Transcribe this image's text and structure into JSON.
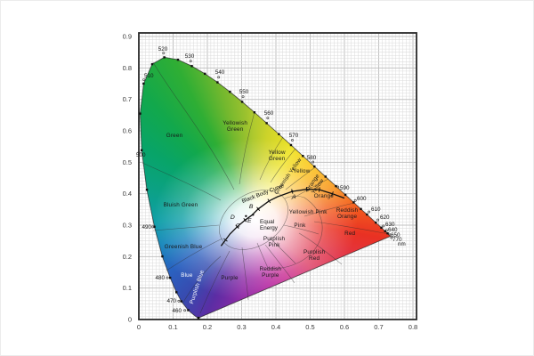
{
  "chart_data": {
    "type": "area",
    "title": "",
    "xlabel": "",
    "ylabel": "",
    "x_axis": {
      "range": [
        0,
        0.8
      ],
      "ticks": [
        "0",
        "0.1",
        "0.2",
        "0.3",
        "0.4",
        "0.5",
        "0.6",
        "0.7",
        "0.8"
      ]
    },
    "y_axis": {
      "range": [
        0,
        0.9
      ],
      "ticks": [
        "0",
        "0.1",
        "0.2",
        "0.3",
        "0.4",
        "0.5",
        "0.6",
        "0.7",
        "0.8",
        "0.9"
      ]
    },
    "grid": {
      "minor_step": 0.01,
      "major_step": 0.1,
      "on": true
    },
    "unit_label": "nm",
    "spectral_locus": [
      [
        380,
        0.1741,
        0.005
      ],
      [
        410,
        0.1726,
        0.0048
      ],
      [
        440,
        0.1644,
        0.0109
      ],
      [
        450,
        0.1566,
        0.0177
      ],
      [
        460,
        0.144,
        0.0297
      ],
      [
        470,
        0.1241,
        0.0578
      ],
      [
        475,
        0.1096,
        0.0868
      ],
      [
        480,
        0.0913,
        0.1327
      ],
      [
        485,
        0.0687,
        0.2007
      ],
      [
        490,
        0.0454,
        0.295
      ],
      [
        495,
        0.0235,
        0.4127
      ],
      [
        500,
        0.0082,
        0.5384
      ],
      [
        505,
        0.0039,
        0.6548
      ],
      [
        510,
        0.0139,
        0.7502
      ],
      [
        515,
        0.0389,
        0.812
      ],
      [
        520,
        0.0743,
        0.8338
      ],
      [
        525,
        0.1142,
        0.8262
      ],
      [
        530,
        0.1547,
        0.8059
      ],
      [
        535,
        0.1929,
        0.7816
      ],
      [
        540,
        0.2296,
        0.7543
      ],
      [
        545,
        0.2658,
        0.7243
      ],
      [
        550,
        0.3016,
        0.6923
      ],
      [
        555,
        0.3373,
        0.6589
      ],
      [
        560,
        0.3731,
        0.6245
      ],
      [
        565,
        0.4087,
        0.5896
      ],
      [
        570,
        0.4441,
        0.5547
      ],
      [
        575,
        0.4788,
        0.5202
      ],
      [
        580,
        0.5125,
        0.4866
      ],
      [
        585,
        0.5448,
        0.4544
      ],
      [
        590,
        0.5752,
        0.4242
      ],
      [
        595,
        0.6029,
        0.3965
      ],
      [
        600,
        0.627,
        0.3725
      ],
      [
        605,
        0.6482,
        0.3514
      ],
      [
        610,
        0.6658,
        0.334
      ],
      [
        620,
        0.6915,
        0.3083
      ],
      [
        630,
        0.7079,
        0.292
      ],
      [
        640,
        0.719,
        0.2809
      ],
      [
        650,
        0.726,
        0.274
      ],
      [
        660,
        0.73,
        0.27
      ],
      [
        770,
        0.7347,
        0.2653
      ]
    ],
    "wavelength_labels": [
      "460",
      "470",
      "480",
      "490",
      "500",
      "510",
      "520",
      "530",
      "540",
      "550",
      "560",
      "570",
      "580",
      "590",
      "600",
      "610",
      "620",
      "630",
      "640",
      "650",
      "770"
    ],
    "regions": [
      {
        "name": "Green",
        "lines": [
          "Green"
        ],
        "x": 0.104,
        "y": 0.58
      },
      {
        "name": "Yellowish Green",
        "lines": [
          "Yellowish",
          "Green"
        ],
        "x": 0.281,
        "y": 0.611
      },
      {
        "name": "Yellow Green",
        "lines": [
          "Yellow",
          "Green"
        ],
        "x": 0.403,
        "y": 0.518
      },
      {
        "name": "Greenish Yellow",
        "lines": [
          "Greenish Yellow"
        ],
        "x": 0.439,
        "y": 0.453,
        "rotate": -55
      },
      {
        "name": "Yellow",
        "lines": [
          "Yellow"
        ],
        "x": 0.475,
        "y": 0.467
      },
      {
        "name": "Orange Yellow",
        "lines": [
          "Orange",
          "Yellow"
        ],
        "x": 0.517,
        "y": 0.427,
        "rotate": -55
      },
      {
        "name": "Orange",
        "lines": [
          "Orange"
        ],
        "x": 0.54,
        "y": 0.388
      },
      {
        "name": "Reddish Orange",
        "lines": [
          "Reddish",
          "Orange"
        ],
        "x": 0.608,
        "y": 0.334
      },
      {
        "name": "Red",
        "lines": [
          "Red"
        ],
        "x": 0.616,
        "y": 0.269
      },
      {
        "name": "Yellowish Pink",
        "lines": [
          "Yellowish Pink"
        ],
        "x": 0.494,
        "y": 0.337
      },
      {
        "name": "Pink",
        "lines": [
          "Pink"
        ],
        "x": 0.47,
        "y": 0.294
      },
      {
        "name": "Purplish Pink",
        "lines": [
          "Purplish",
          "Pink"
        ],
        "x": 0.395,
        "y": 0.243
      },
      {
        "name": "Purplish Red",
        "lines": [
          "Purplish",
          "Red"
        ],
        "x": 0.512,
        "y": 0.201
      },
      {
        "name": "Reddish Purple",
        "lines": [
          "Reddish",
          "Purple"
        ],
        "x": 0.384,
        "y": 0.147
      },
      {
        "name": "Purple",
        "lines": [
          "Purple"
        ],
        "x": 0.265,
        "y": 0.127
      },
      {
        "name": "Purplish Blue",
        "lines": [
          "Purplish Blue"
        ],
        "x": 0.174,
        "y": 0.102,
        "rotate": -72,
        "light": true
      },
      {
        "name": "Blue",
        "lines": [
          "Blue"
        ],
        "x": 0.14,
        "y": 0.136,
        "light": true
      },
      {
        "name": "Greenish Blue",
        "lines": [
          "Greenish Blue"
        ],
        "x": 0.13,
        "y": 0.226
      },
      {
        "name": "Bluish Green",
        "lines": [
          "Bluish Green"
        ],
        "x": 0.122,
        "y": 0.359
      }
    ],
    "blackbody": {
      "label": "Black Body Curve",
      "equal_energy_label": [
        "Equal",
        "Energy"
      ],
      "curve": [
        [
          0.24,
          0.234
        ],
        [
          0.253,
          0.253
        ],
        [
          0.266,
          0.272
        ],
        [
          0.287,
          0.295
        ],
        [
          0.3101,
          0.3162
        ],
        [
          0.33,
          0.332
        ],
        [
          0.3484,
          0.3516
        ],
        [
          0.38,
          0.377
        ],
        [
          0.4053,
          0.3907
        ],
        [
          0.4476,
          0.4074
        ],
        [
          0.49,
          0.414
        ],
        [
          0.527,
          0.413
        ],
        [
          0.565,
          0.4
        ],
        [
          0.6,
          0.386
        ]
      ],
      "points": [
        {
          "label": "A",
          "x": 0.4476,
          "y": 0.4074
        },
        {
          "label": "B",
          "x": 0.3484,
          "y": 0.3516
        },
        {
          "label": "C",
          "x": 0.3101,
          "y": 0.3162
        },
        {
          "label": "D",
          "x": 0.3127,
          "y": 0.329
        },
        {
          "label": "E",
          "x": 0.3333,
          "y": 0.3333
        }
      ]
    },
    "palette": {
      "conic_stops": [
        [
          0,
          "#aec92e"
        ],
        [
          10,
          "#cdd32a"
        ],
        [
          30,
          "#efe426"
        ],
        [
          50,
          "#fbc51e"
        ],
        [
          70,
          "#f8991c"
        ],
        [
          85,
          "#f35f1e"
        ],
        [
          100,
          "#e93123"
        ],
        [
          115,
          "#e23548"
        ],
        [
          132,
          "#dd4168"
        ],
        [
          150,
          "#cb2d8f"
        ],
        [
          168,
          "#b424a0"
        ],
        [
          188,
          "#8f2aa6"
        ],
        [
          205,
          "#5b2da4"
        ],
        [
          218,
          "#3948ae"
        ],
        [
          236,
          "#2a62c0"
        ],
        [
          252,
          "#1887bc"
        ],
        [
          266,
          "#0f9fa8"
        ],
        [
          285,
          "#0ba183"
        ],
        [
          302,
          "#08a468"
        ],
        [
          318,
          "#12a84c"
        ],
        [
          333,
          "#2fae34"
        ],
        [
          346,
          "#74b82e"
        ],
        [
          356,
          "#9cc22e"
        ],
        [
          360,
          "#aec92e"
        ]
      ],
      "grid_minor": "#dcdcdc",
      "grid_major": "#c2c2c2",
      "frame": "#2a2a2a",
      "line": "#333333"
    }
  }
}
